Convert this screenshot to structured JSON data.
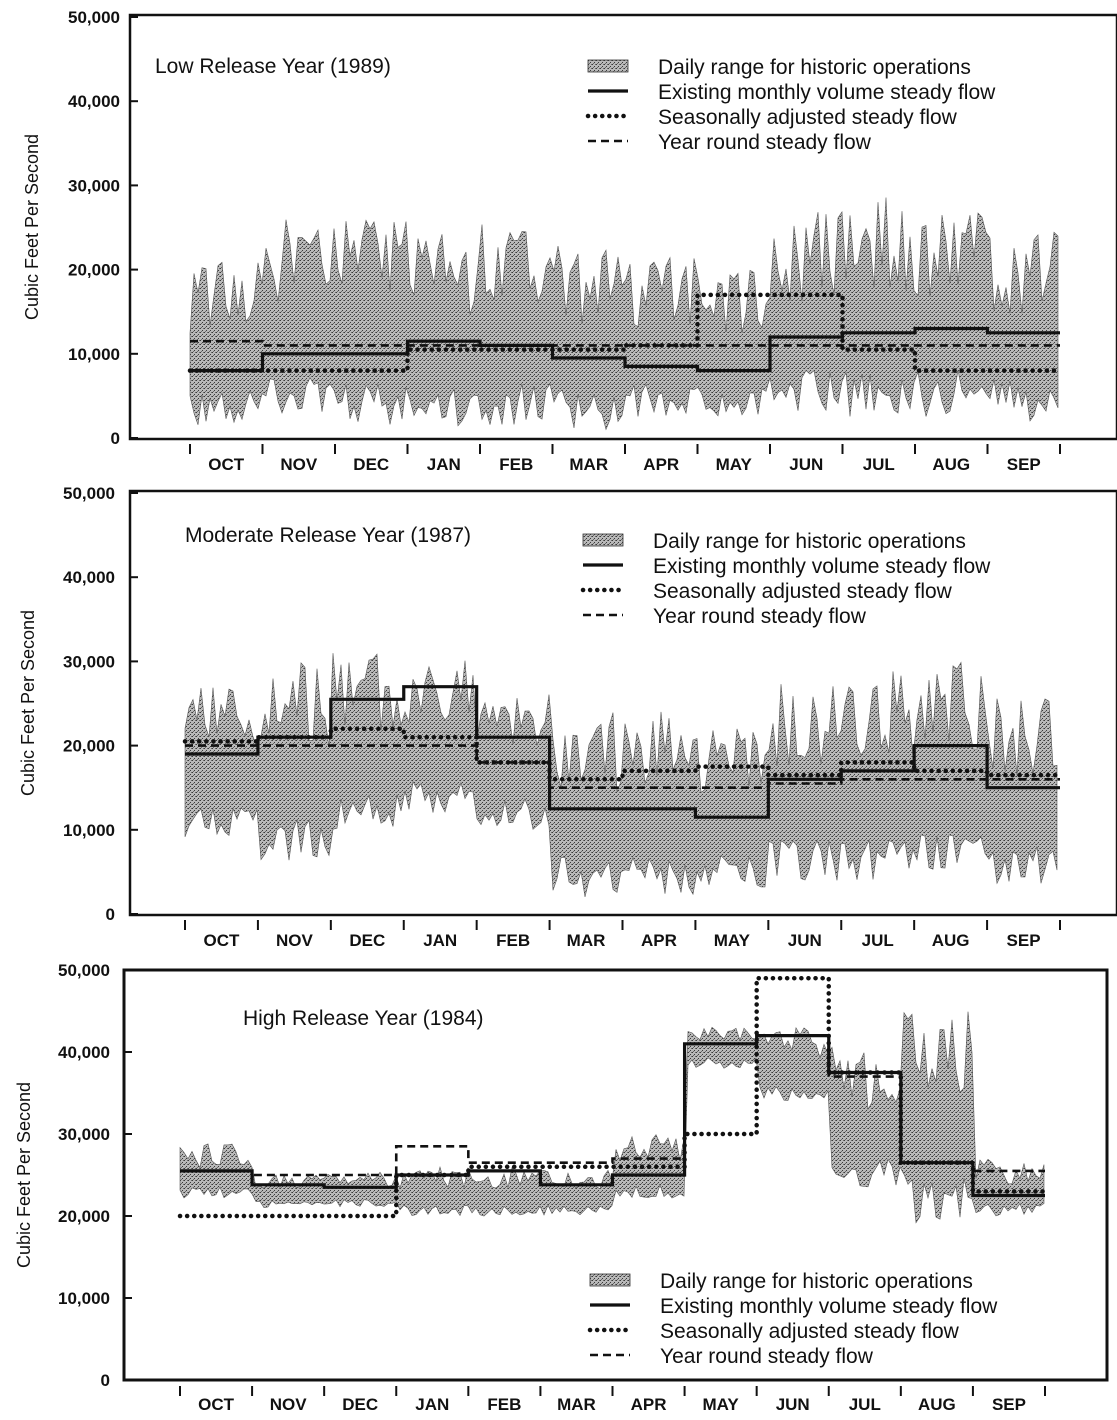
{
  "chart_data": [
    {
      "type": "line",
      "title": "Low Release Year (1989)",
      "ylabel": "Cubic Feet Per Second",
      "xlabel": "",
      "ylim": [
        0,
        50000
      ],
      "yticks": [
        "50,000",
        "40,000",
        "30,000",
        "20,000",
        "10,000",
        "0"
      ],
      "categories": [
        "OCT",
        "NOV",
        "DEC",
        "JAN",
        "FEB",
        "MAR",
        "APR",
        "MAY",
        "JUN",
        "JUL",
        "AUG",
        "SEP"
      ],
      "legend_placement": "top-right",
      "series": [
        {
          "name": "Daily range for historic operations",
          "style": "band",
          "low": [
            1500,
            2000,
            1500,
            1000,
            1000,
            1000,
            2000,
            2500,
            3000,
            2500,
            2500,
            2000
          ],
          "high": [
            21000,
            27000,
            26000,
            25000,
            26000,
            23000,
            22000,
            20000,
            27000,
            29000,
            28000,
            25000
          ]
        },
        {
          "name": "Existing monthly volume steady flow",
          "style": "solid",
          "values": [
            8000,
            10000,
            10000,
            11500,
            11000,
            9500,
            8500,
            8000,
            12000,
            12500,
            13000,
            12500
          ]
        },
        {
          "name": "Seasonally adjusted steady flow",
          "style": "dotted",
          "values": [
            8000,
            8000,
            8000,
            10500,
            10500,
            10500,
            11000,
            17000,
            17000,
            10500,
            8000,
            8000
          ]
        },
        {
          "name": "Year round steady flow",
          "style": "dashed",
          "values": [
            11500,
            11000,
            11000,
            11000,
            11000,
            11000,
            11000,
            11000,
            11000,
            11000,
            11000,
            11000
          ]
        }
      ]
    },
    {
      "type": "line",
      "title": "Moderate Release Year (1987)",
      "ylabel": "Cubic Feet Per Second",
      "xlabel": "",
      "ylim": [
        0,
        50000
      ],
      "yticks": [
        "50,000",
        "40,000",
        "30,000",
        "20,000",
        "10,000",
        "0"
      ],
      "categories": [
        "OCT",
        "NOV",
        "DEC",
        "JAN",
        "FEB",
        "MAR",
        "APR",
        "MAY",
        "JUN",
        "JUL",
        "AUG",
        "SEP"
      ],
      "legend_placement": "top-right",
      "series": [
        {
          "name": "Daily range for historic operations",
          "style": "band",
          "low": [
            9000,
            6000,
            10000,
            12000,
            10000,
            2000,
            2000,
            3000,
            3000,
            4000,
            5000,
            3000
          ],
          "high": [
            27000,
            30000,
            31000,
            31000,
            27000,
            24000,
            26000,
            22000,
            29000,
            29000,
            30000,
            26000
          ]
        },
        {
          "name": "Existing monthly volume steady flow",
          "style": "solid",
          "values": [
            19000,
            21000,
            25500,
            27000,
            21000,
            12500,
            12500,
            11500,
            16000,
            17000,
            20000,
            15000
          ]
        },
        {
          "name": "Seasonally adjusted steady flow",
          "style": "dotted",
          "values": [
            20500,
            21000,
            22000,
            21000,
            18000,
            16000,
            17000,
            17500,
            16500,
            18000,
            17000,
            16500
          ]
        },
        {
          "name": "Year round steady flow",
          "style": "dashed",
          "values": [
            20000,
            20000,
            20000,
            20000,
            18000,
            15000,
            15000,
            15000,
            15500,
            16000,
            16000,
            16000
          ]
        }
      ]
    },
    {
      "type": "line",
      "title": "High Release Year (1984)",
      "ylabel": "Cubic Feet Per Second",
      "xlabel": "",
      "ylim": [
        0,
        50000
      ],
      "yticks": [
        "50,000",
        "40,000",
        "30,000",
        "20,000",
        "10,000",
        "0"
      ],
      "categories": [
        "OCT",
        "NOV",
        "DEC",
        "JAN",
        "FEB",
        "MAR",
        "APR",
        "MAY",
        "JUN",
        "JUL",
        "AUG",
        "SEP"
      ],
      "legend_placement": "bottom-right",
      "series": [
        {
          "name": "Daily range for historic operations",
          "style": "band",
          "low": [
            22000,
            21000,
            21000,
            20000,
            20000,
            20000,
            22000,
            38000,
            34000,
            23000,
            19000,
            20000
          ],
          "high": [
            29000,
            25000,
            25500,
            26000,
            26000,
            26000,
            30000,
            44000,
            43000,
            41000,
            48000,
            27000
          ]
        },
        {
          "name": "Existing monthly volume steady flow",
          "style": "solid",
          "values": [
            25500,
            23800,
            23500,
            25000,
            25500,
            23800,
            25000,
            41000,
            42000,
            37500,
            26500,
            22500
          ]
        },
        {
          "name": "Seasonally adjusted steady flow",
          "style": "dotted",
          "values": [
            20000,
            20000,
            20000,
            25000,
            26000,
            26000,
            26000,
            30000,
            49000,
            37500,
            26500,
            23000
          ]
        },
        {
          "name": "Year round steady flow",
          "style": "dashed",
          "values": [
            25500,
            25000,
            25000,
            28500,
            26500,
            26500,
            27000,
            41000,
            42000,
            37000,
            26500,
            25500
          ]
        }
      ]
    }
  ]
}
